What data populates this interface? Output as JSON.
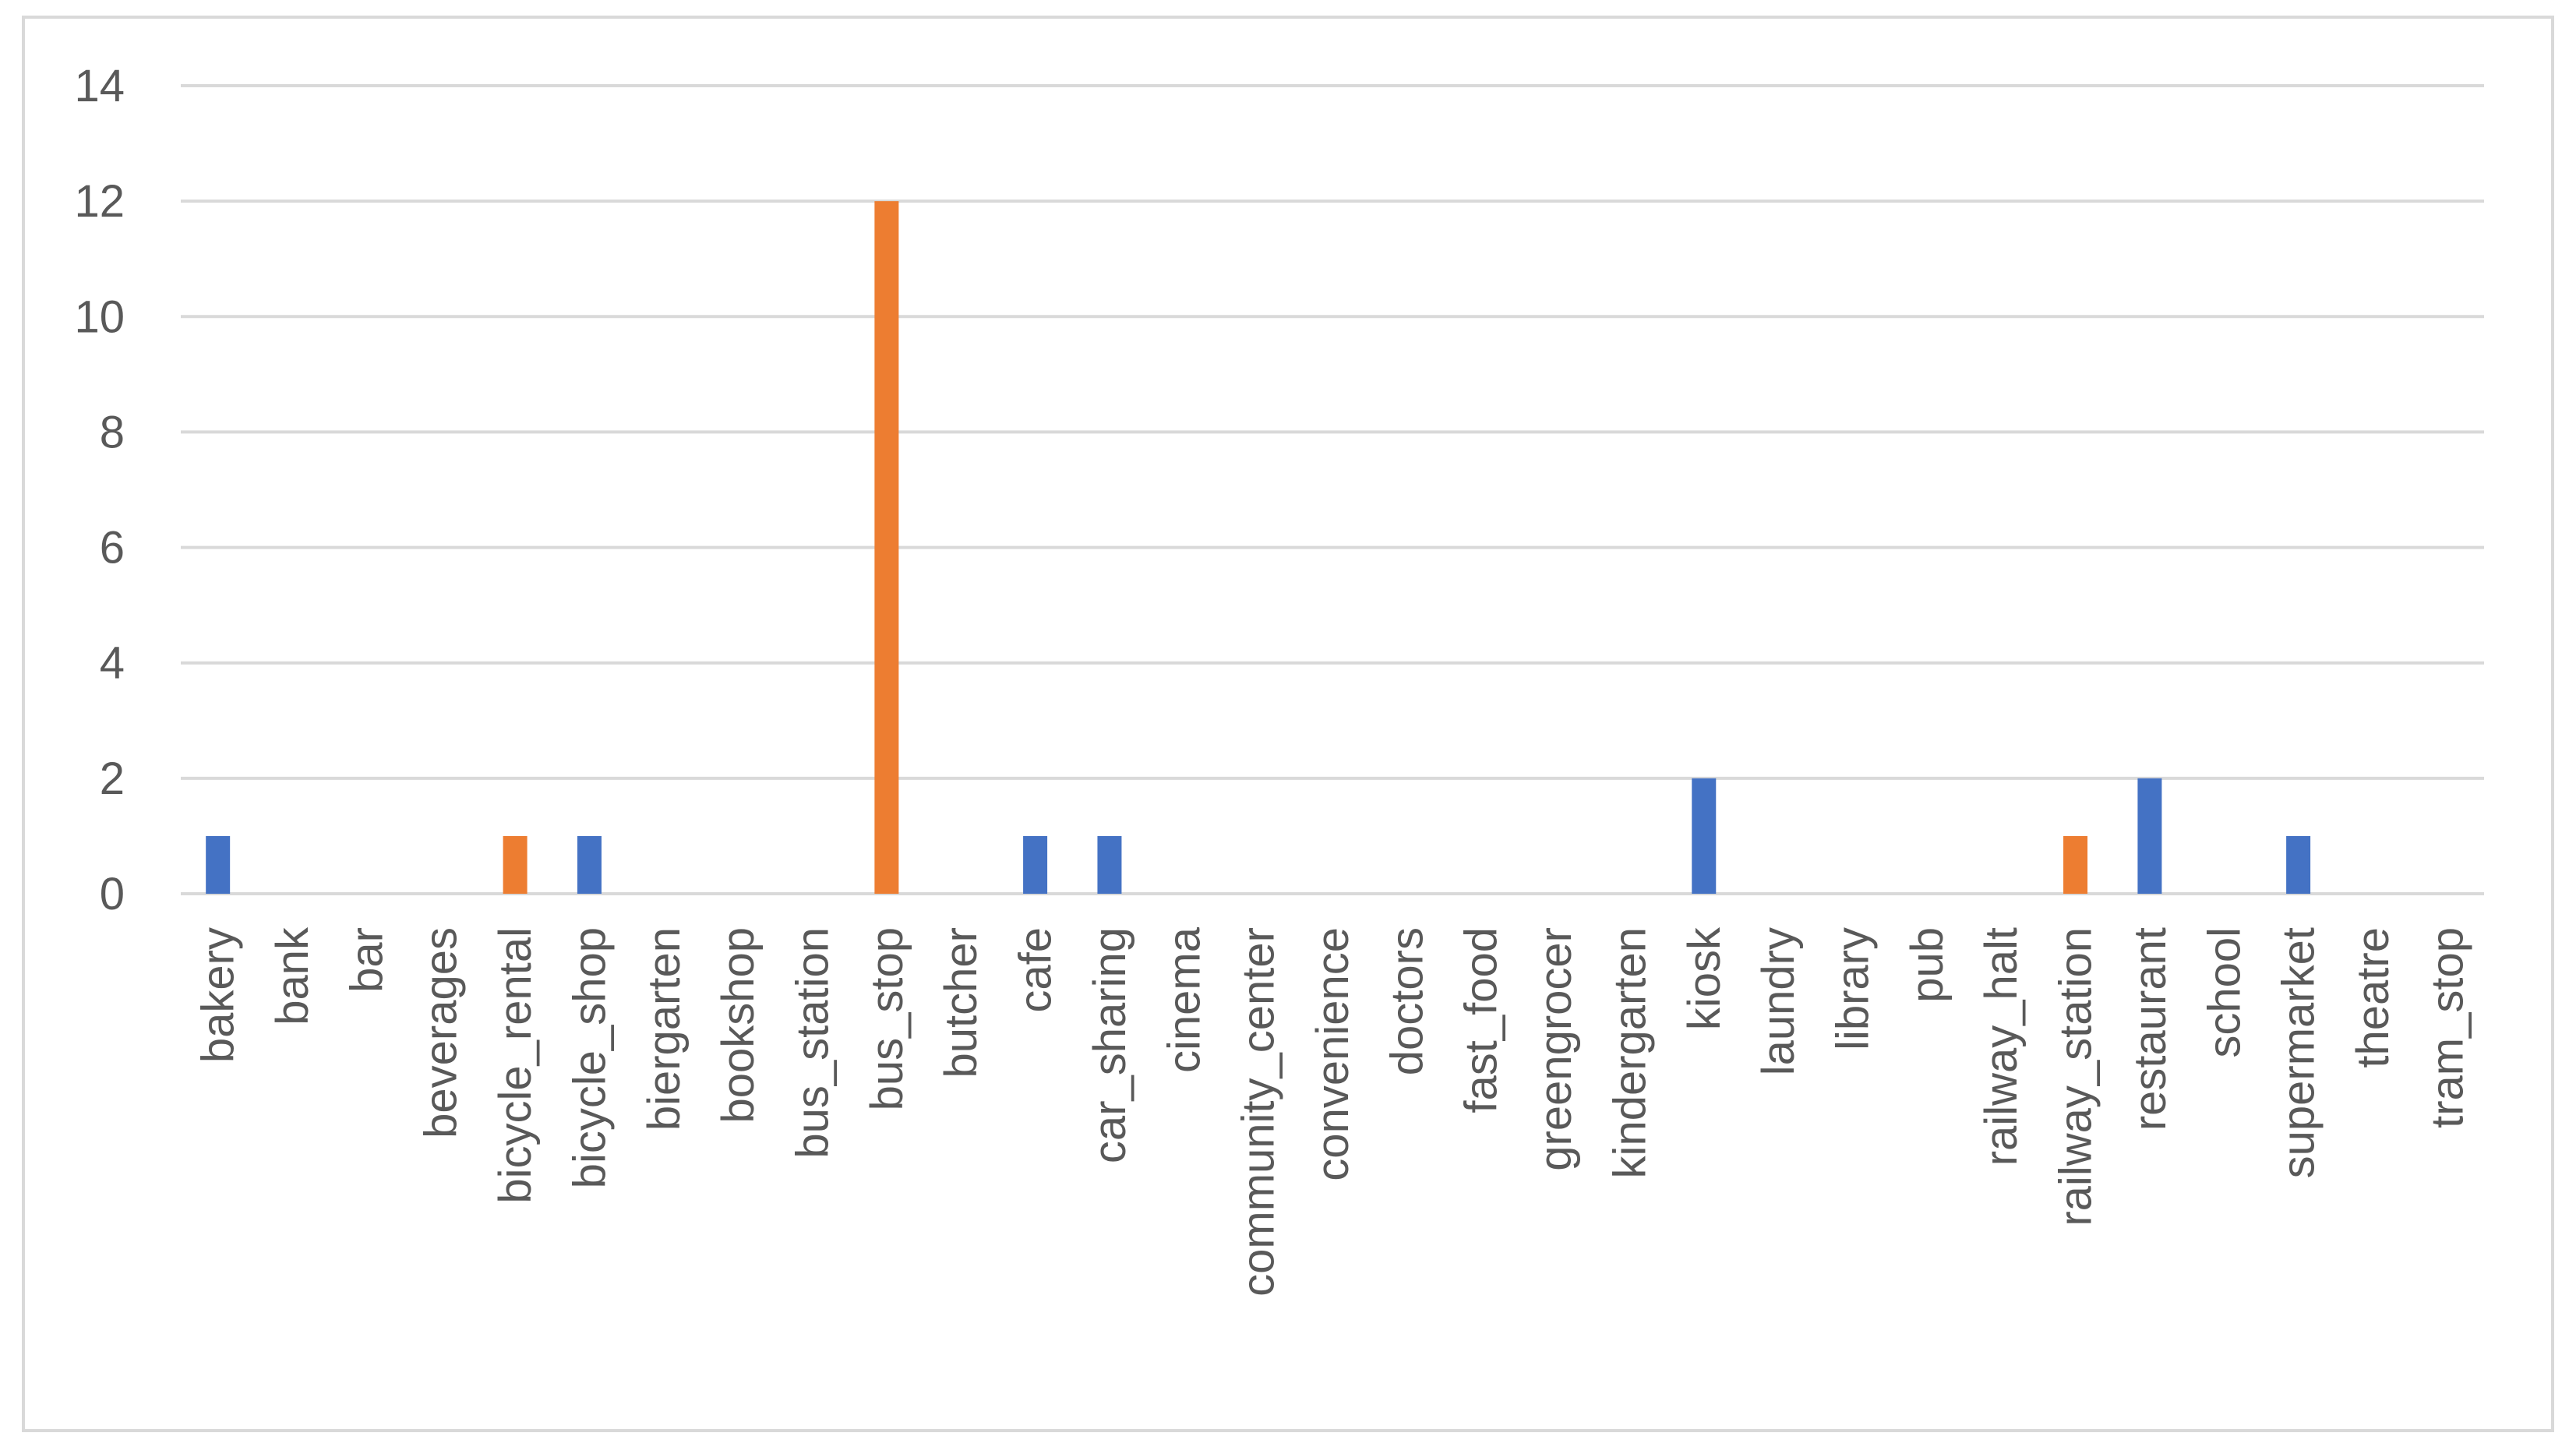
{
  "chart_data": {
    "type": "bar",
    "title": "",
    "xlabel": "",
    "ylabel": "",
    "ylim": [
      0,
      14
    ],
    "yticks": [
      0,
      2,
      4,
      6,
      8,
      10,
      12,
      14
    ],
    "grid": true,
    "legend": "none",
    "categories": [
      "bakery",
      "bank",
      "bar",
      "beverages",
      "bicycle_rental",
      "bicycle_shop",
      "biergarten",
      "bookshop",
      "bus_station",
      "bus_stop",
      "butcher",
      "cafe",
      "car_sharing",
      "cinema",
      "community_center",
      "convenience",
      "doctors",
      "fast_food",
      "greengrocer",
      "kindergarten",
      "kiosk",
      "laundry",
      "library",
      "pub",
      "railway_halt",
      "railway_station",
      "restaurant",
      "school",
      "supermarket",
      "theatre",
      "tram_stop"
    ],
    "series": [
      {
        "color": "#4472c4",
        "values": [
          1,
          0,
          0,
          0,
          0,
          1,
          0,
          0,
          0,
          0,
          0,
          1,
          1,
          0,
          0,
          0,
          0,
          0,
          0,
          0,
          2,
          0,
          0,
          0,
          0,
          0,
          2,
          0,
          1,
          0,
          0
        ]
      },
      {
        "color": "#ed7d31",
        "values": [
          0,
          0,
          0,
          0,
          1,
          0,
          0,
          0,
          0,
          12,
          0,
          0,
          0,
          0,
          0,
          0,
          0,
          0,
          0,
          0,
          0,
          0,
          0,
          0,
          0,
          1,
          0,
          0,
          0,
          0,
          0
        ]
      }
    ],
    "colors": {
      "grid": "#d9d9d9",
      "text": "#595959",
      "frame": "#d9d9d9"
    }
  }
}
